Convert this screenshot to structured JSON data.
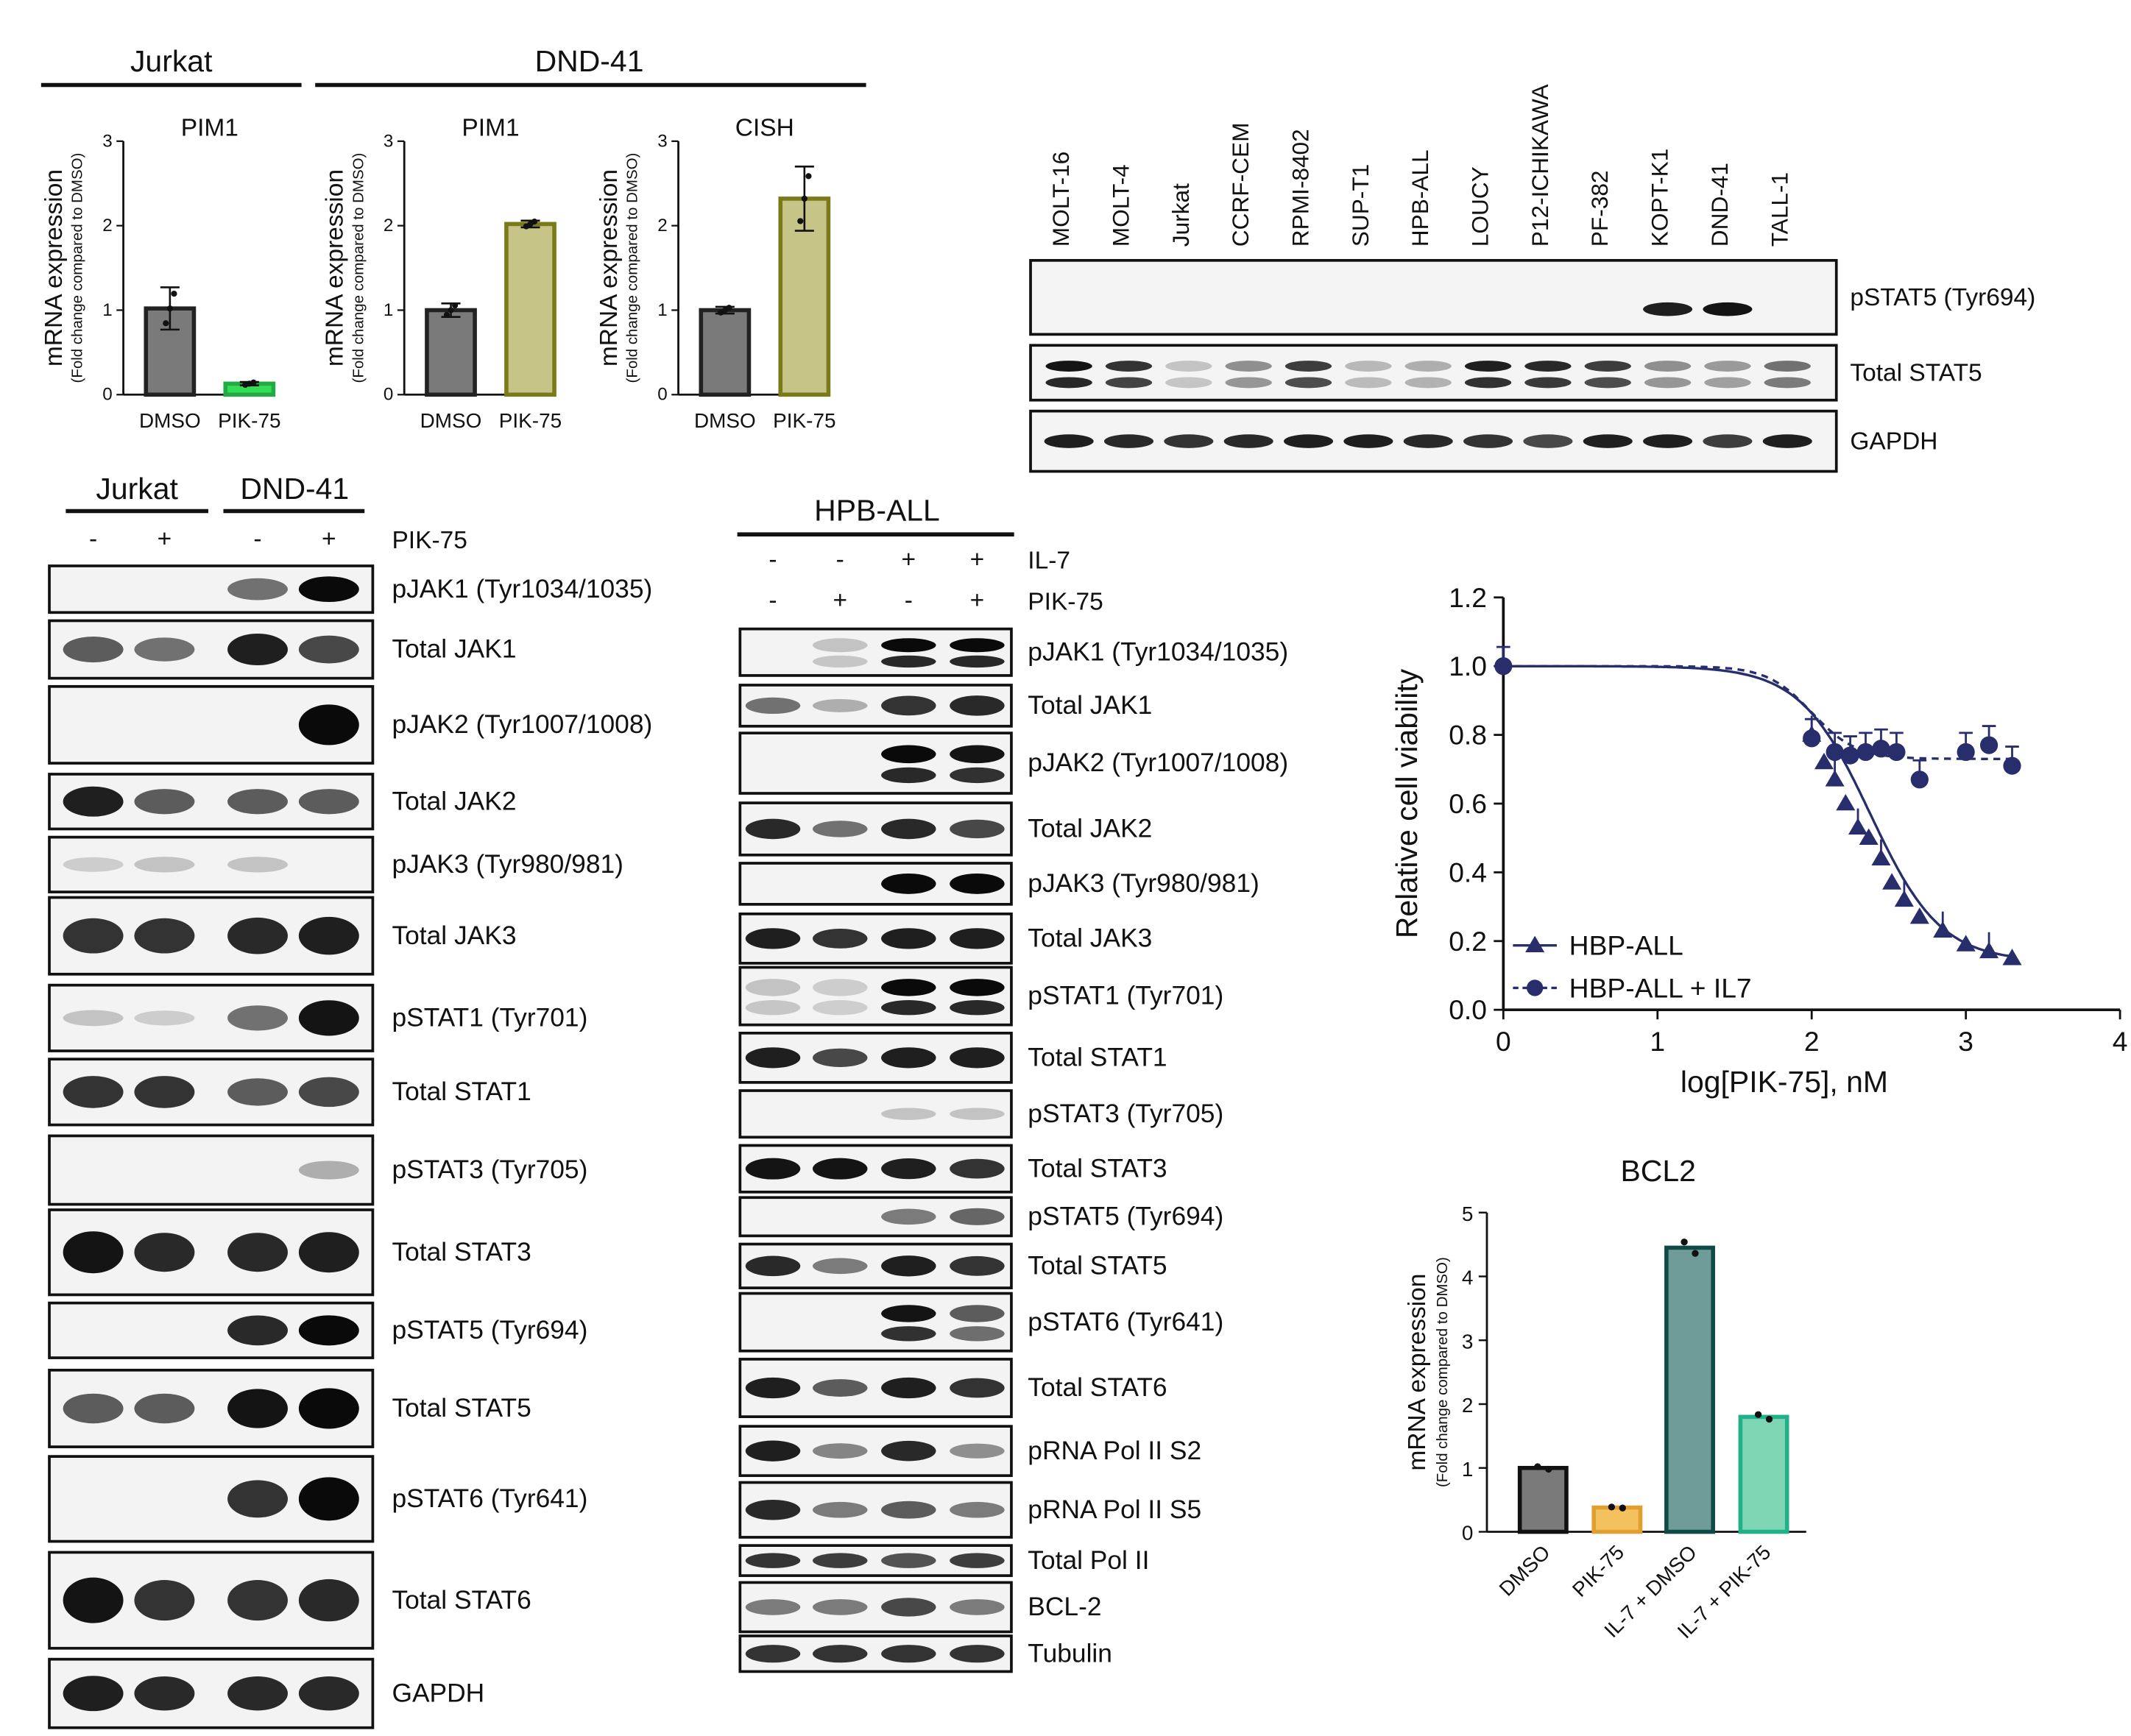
{
  "colors": {
    "dmso": "#7a7a7a",
    "pik_jurkat": "#33dd55",
    "pik_olive": "#c7c487",
    "olive_edge": "#7b7a18",
    "navy": "#272e6b",
    "bcl2_dmso": "#7a7a7a",
    "bcl2_pik": "#f4c15f",
    "bcl2_il7": "#6f9c98",
    "bcl2_il7pik": "#7ed6b5"
  },
  "top_bars": {
    "ylabel": "mRNA expression",
    "ylabel_sub": "(Fold change compared to DMSO)",
    "groups": [
      {
        "title": "Jurkat",
        "title_key": "jurkat"
      },
      {
        "title": "DND-41",
        "title_key": "dnd"
      }
    ]
  },
  "chart_data": [
    {
      "type": "bar",
      "title": "PIM1",
      "group": "Jurkat",
      "categories": [
        "DMSO",
        "PIK-75"
      ],
      "values": [
        1.02,
        0.13
      ],
      "errors": [
        0.25,
        0.02
      ],
      "ylim": [
        0,
        3
      ],
      "yticks": [
        "0",
        "1",
        "2",
        "3"
      ],
      "ylabel": "mRNA expression"
    },
    {
      "type": "bar",
      "title": "PIM1",
      "group": "DND-41",
      "categories": [
        "DMSO",
        "PIK-75"
      ],
      "values": [
        1.0,
        2.02
      ],
      "errors": [
        0.08,
        0.04
      ],
      "ylim": [
        0,
        3
      ],
      "yticks": [
        "0",
        "1",
        "2",
        "3"
      ],
      "ylabel": "mRNA expression"
    },
    {
      "type": "bar",
      "title": "CISH",
      "group": "DND-41",
      "categories": [
        "DMSO",
        "PIK-75"
      ],
      "values": [
        1.0,
        2.32
      ],
      "errors": [
        0.04,
        0.38
      ],
      "ylim": [
        0,
        3
      ],
      "yticks": [
        "0",
        "1",
        "2",
        "3"
      ],
      "ylabel": "mRNA expression"
    },
    {
      "type": "scatter",
      "xlabel": "log[PIK-75], nM",
      "ylabel": "Relative cell viability",
      "xlim": [
        0,
        4
      ],
      "ylim": [
        0,
        1.2
      ],
      "xticks": [
        "0",
        "1",
        "2",
        "3",
        "4"
      ],
      "yticks": [
        "0.0",
        "0.2",
        "0.4",
        "0.6",
        "0.8",
        "1.0",
        "1.2"
      ],
      "legend_position": "bottom-left",
      "series": [
        {
          "name": "HBP-ALL",
          "marker": "triangle",
          "line": "solid",
          "x": [
            2.0,
            2.08,
            2.15,
            2.22,
            2.3,
            2.37,
            2.45,
            2.52,
            2.6,
            2.7,
            2.85,
            3.0,
            3.15,
            3.3
          ],
          "y": [
            0.8,
            0.72,
            0.67,
            0.6,
            0.53,
            0.5,
            0.44,
            0.37,
            0.32,
            0.27,
            0.23,
            0.19,
            0.17,
            0.15
          ]
        },
        {
          "name": "HBP-ALL + IL7",
          "marker": "circle",
          "line": "dashed",
          "x": [
            0.0,
            2.0,
            2.15,
            2.25,
            2.35,
            2.45,
            2.55,
            2.7,
            3.0,
            3.15,
            3.3
          ],
          "y": [
            1.0,
            0.79,
            0.75,
            0.74,
            0.75,
            0.76,
            0.75,
            0.67,
            0.75,
            0.77,
            0.71
          ]
        }
      ]
    },
    {
      "type": "bar",
      "title": "BCL2",
      "categories": [
        "DMSO",
        "PIK-75",
        "IL-7 + DMSO",
        "IL-7 + PIK-75"
      ],
      "values": [
        1.0,
        0.38,
        4.45,
        1.8
      ],
      "ylim": [
        0,
        5
      ],
      "yticks": [
        "0",
        "1",
        "2",
        "3",
        "4",
        "5"
      ],
      "ylabel": "mRNA expression"
    }
  ],
  "cell_lines_blot": {
    "lanes": [
      "MOLT-16",
      "MOLT-4",
      "Jurkat",
      "CCRF-CEM",
      "RPMI-8402",
      "SUP-T1",
      "HPB-ALL",
      "LOUCY",
      "P12-ICHIKAWA",
      "PF-382",
      "KOPT-K1",
      "DND-41",
      "TALL-1"
    ],
    "rows": [
      {
        "label": "pSTAT5 (Tyr694)",
        "intensity": [
          0,
          0,
          0,
          0,
          0,
          0,
          0,
          0,
          0,
          0,
          0.9,
          0.95,
          0
        ]
      },
      {
        "label": "Total STAT5",
        "intensity": [
          0.95,
          0.8,
          0.1,
          0.35,
          0.75,
          0.15,
          0.2,
          0.9,
          0.85,
          0.75,
          0.35,
          0.3,
          0.5
        ]
      },
      {
        "label": "GAPDH",
        "intensity": [
          0.9,
          0.85,
          0.8,
          0.85,
          0.9,
          0.9,
          0.85,
          0.8,
          0.7,
          0.9,
          0.9,
          0.75,
          0.9
        ]
      }
    ]
  },
  "blot_a": {
    "group_labels": [
      "Jurkat",
      "DND-41"
    ],
    "signs": [
      "-",
      "+",
      "-",
      "+"
    ],
    "treatment_label": "PIK-75",
    "rows": [
      {
        "label": "pJAK1 (Tyr1034/1035)",
        "intensity": [
          0,
          0,
          0.5,
          1
        ]
      },
      {
        "label": "Total JAK1",
        "intensity": [
          0.6,
          0.5,
          0.9,
          0.7
        ]
      },
      {
        "label": "pJAK2 (Tyr1007/1008)",
        "intensity": [
          0,
          0,
          0,
          1
        ]
      },
      {
        "label": "Total JAK2",
        "intensity": [
          0.9,
          0.6,
          0.6,
          0.6
        ]
      },
      {
        "label": "pJAK3 (Tyr980/981)",
        "intensity": [
          0.05,
          0.1,
          0.1,
          0
        ]
      },
      {
        "label": "Total JAK3",
        "intensity": [
          0.8,
          0.8,
          0.85,
          0.9
        ]
      },
      {
        "label": "pSTAT1 (Tyr701)",
        "intensity": [
          0.1,
          0.05,
          0.5,
          0.95
        ]
      },
      {
        "label": "Total STAT1",
        "intensity": [
          0.8,
          0.8,
          0.6,
          0.7
        ]
      },
      {
        "label": "pSTAT3 (Tyr705)",
        "intensity": [
          0,
          0,
          0,
          0.2
        ]
      },
      {
        "label": "Total STAT3",
        "intensity": [
          0.95,
          0.85,
          0.85,
          0.9
        ]
      },
      {
        "label": "pSTAT5 (Tyr694)",
        "intensity": [
          0,
          0,
          0.85,
          1
        ]
      },
      {
        "label": "Total STAT5",
        "intensity": [
          0.6,
          0.6,
          0.95,
          1
        ]
      },
      {
        "label": "pSTAT6 (Tyr641)",
        "intensity": [
          0,
          0,
          0.8,
          1
        ]
      },
      {
        "label": "Total STAT6",
        "intensity": [
          0.95,
          0.8,
          0.8,
          0.85
        ]
      },
      {
        "label": "GAPDH",
        "intensity": [
          0.9,
          0.85,
          0.85,
          0.85
        ]
      }
    ]
  },
  "blot_b": {
    "title": "HPB-ALL",
    "il7_signs": [
      "-",
      "-",
      "+",
      "+"
    ],
    "il7_label": "IL-7",
    "pik_signs": [
      "-",
      "+",
      "-",
      "+"
    ],
    "pik_label": "PIK-75",
    "rows": [
      {
        "label": "pJAK1 (Tyr1034/1035)",
        "intensity": [
          0,
          0.1,
          1,
          1
        ]
      },
      {
        "label": "Total JAK1",
        "intensity": [
          0.5,
          0.2,
          0.8,
          0.85
        ]
      },
      {
        "label": "pJAK2 (Tyr1007/1008)",
        "intensity": [
          0,
          0,
          1,
          0.95
        ]
      },
      {
        "label": "Total JAK2",
        "intensity": [
          0.85,
          0.5,
          0.85,
          0.7
        ]
      },
      {
        "label": "pJAK3 (Tyr980/981)",
        "intensity": [
          0,
          0,
          1,
          1
        ]
      },
      {
        "label": "Total JAK3",
        "intensity": [
          0.9,
          0.8,
          0.9,
          0.9
        ]
      },
      {
        "label": "pSTAT1 (Tyr701)",
        "intensity": [
          0.1,
          0.05,
          1,
          1
        ]
      },
      {
        "label": "Total STAT1",
        "intensity": [
          0.9,
          0.7,
          0.9,
          0.9
        ]
      },
      {
        "label": "pSTAT3 (Tyr705)",
        "intensity": [
          0,
          0,
          0.1,
          0.1
        ]
      },
      {
        "label": "Total STAT3",
        "intensity": [
          0.95,
          0.95,
          0.9,
          0.8
        ]
      },
      {
        "label": "pSTAT5 (Tyr694)",
        "intensity": [
          0,
          0,
          0.45,
          0.55
        ]
      },
      {
        "label": "Total STAT5",
        "intensity": [
          0.85,
          0.45,
          0.9,
          0.8
        ]
      },
      {
        "label": "pSTAT6 (Tyr641)",
        "intensity": [
          0,
          0,
          0.95,
          0.6
        ]
      },
      {
        "label": "Total STAT6",
        "intensity": [
          0.9,
          0.6,
          0.9,
          0.8
        ]
      },
      {
        "label": "pRNA Pol II S2",
        "intensity": [
          0.9,
          0.4,
          0.85,
          0.35
        ]
      },
      {
        "label": "pRNA Pol II S5",
        "intensity": [
          0.85,
          0.45,
          0.6,
          0.45
        ]
      },
      {
        "label": "Total Pol II",
        "intensity": [
          0.8,
          0.75,
          0.65,
          0.75
        ]
      },
      {
        "label": "BCL-2",
        "intensity": [
          0.45,
          0.45,
          0.7,
          0.45
        ]
      },
      {
        "label": "Tubulin",
        "intensity": [
          0.8,
          0.8,
          0.8,
          0.8
        ]
      }
    ]
  }
}
